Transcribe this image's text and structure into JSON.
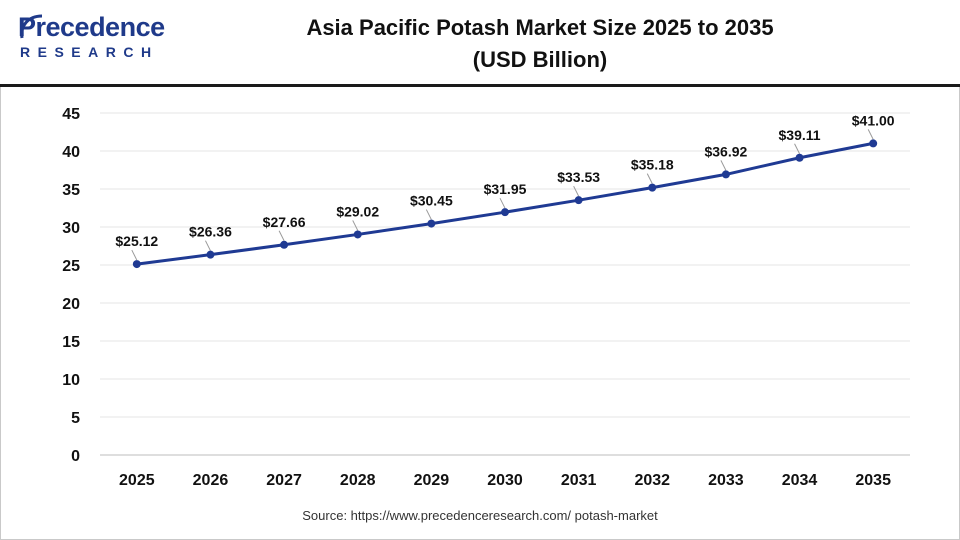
{
  "header": {
    "logo_main": "Precedence",
    "logo_sub": "RESEARCH",
    "title_line1": "Asia Pacific Potash Market Size 2025 to 2035",
    "title_line2": "(USD Billion)"
  },
  "source": "Source: https://www.precedenceresearch.com/ potash-market",
  "colors": {
    "line": "#1f3a93",
    "brand": "#1f3a8a",
    "grid": "#e6e6e6"
  },
  "chart_data": {
    "type": "line",
    "title": "Asia Pacific Potash Market Size 2025 to 2035 (USD Billion)",
    "xlabel": "",
    "ylabel": "",
    "categories": [
      "2025",
      "2026",
      "2027",
      "2028",
      "2029",
      "2030",
      "2031",
      "2032",
      "2033",
      "2034",
      "2035"
    ],
    "series": [
      {
        "values": [
          25.12,
          26.36,
          27.66,
          29.02,
          30.45,
          31.95,
          33.53,
          35.18,
          36.92,
          39.11,
          41.0
        ],
        "labels": [
          "$25.12",
          "$26.36",
          "$27.66",
          "$29.02",
          "$30.45",
          "$31.95",
          "$33.53",
          "$35.18",
          "$36.92",
          "$39.11",
          "$41.00"
        ]
      }
    ],
    "ylim": [
      0,
      45
    ],
    "yticks": [
      "0",
      "5",
      "10",
      "15",
      "20",
      "25",
      "30",
      "35",
      "40",
      "45"
    ],
    "grid": true
  }
}
